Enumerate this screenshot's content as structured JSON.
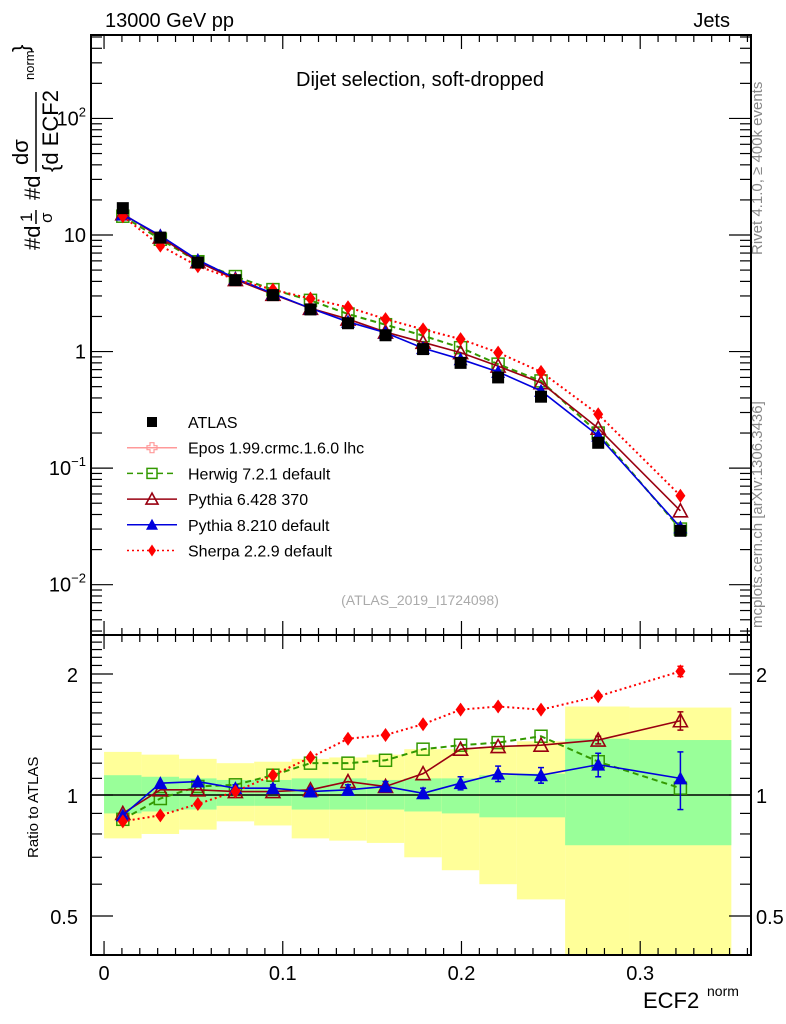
{
  "header": {
    "left": "13000 GeV pp",
    "right": "Jets",
    "side_top": "Rivet 4.1.0, ≥ 400k events",
    "side_bottom": "mcplots.cern.ch [arXiv:1306.3436]"
  },
  "chart_data": [
    {
      "type": "line",
      "title": "Dijet selection, soft-dropped",
      "analysis_label": "(ATLAS_2019_I1724098)",
      "ylabel": "#d¹⁄σ #d dσ/{d ECF2^{norm}}",
      "ylabel_parts": {
        "lhs": "#d",
        "frac1_num": "1",
        "frac1_den": "σ",
        "mid": "#d",
        "frac2_num": "dσ",
        "frac2_den": "{d ECF2",
        "sup": "norm",
        "close": "}"
      },
      "yscale": "log",
      "ylim": [
        0.0037,
        520
      ],
      "xlim": [
        -0.0073,
        0.362
      ],
      "yticks": [
        {
          "v": 100,
          "base": "10",
          "exp": "2"
        },
        {
          "v": 10,
          "base": "10",
          "exp": ""
        },
        {
          "v": 1,
          "base": "1",
          "exp": ""
        },
        {
          "v": 0.1,
          "base": "10",
          "exp": "−1"
        },
        {
          "v": 0.01,
          "base": "10",
          "exp": "−2"
        }
      ],
      "x": [
        0.0105,
        0.0315,
        0.0525,
        0.0735,
        0.0945,
        0.1155,
        0.1365,
        0.1575,
        0.1785,
        0.1995,
        0.2205,
        0.2445,
        0.2765,
        0.3225
      ],
      "series": [
        {
          "name": "ATLAS",
          "color": "#000000",
          "marker": "square-filled",
          "line": "none",
          "values": [
            17.0,
            9.5,
            5.8,
            4.1,
            3.05,
            2.3,
            1.75,
            1.38,
            1.05,
            0.8,
            0.6,
            0.41,
            0.165,
            0.029
          ]
        },
        {
          "name": "Epos 1.99.crmc.1.6.0 lhc",
          "color": "#ff9999",
          "marker": "plus-open",
          "line": "solid",
          "values": []
        },
        {
          "name": "Herwig 7.2.1 default",
          "color": "#339900",
          "marker": "square-open",
          "line": "dashed",
          "values": [
            14.5,
            9.2,
            5.9,
            4.4,
            3.4,
            2.75,
            2.1,
            1.7,
            1.37,
            1.08,
            0.78,
            0.56,
            0.2,
            0.03
          ]
        },
        {
          "name": "Pythia 6.428 370",
          "color": "#990011",
          "marker": "triangle-open",
          "line": "solid",
          "values": [
            15.2,
            9.6,
            5.9,
            4.15,
            3.1,
            2.35,
            1.9,
            1.47,
            1.2,
            0.98,
            0.75,
            0.54,
            0.22,
            0.043
          ]
        },
        {
          "name": "Pythia 8.210 default",
          "color": "#0000dd",
          "marker": "triangle-filled",
          "line": "solid",
          "values": [
            15.0,
            9.9,
            6.1,
            4.25,
            3.15,
            2.35,
            1.8,
            1.45,
            1.07,
            0.86,
            0.67,
            0.46,
            0.19,
            0.031
          ]
        },
        {
          "name": "Sherpa 2.2.9 default",
          "color": "#ff0000",
          "marker": "diamond-filled",
          "line": "dotted",
          "values": [
            14.5,
            8.1,
            5.4,
            4.15,
            3.4,
            2.85,
            2.4,
            1.9,
            1.55,
            1.28,
            0.98,
            0.67,
            0.29,
            0.058
          ]
        }
      ],
      "legend_position": "middle-left"
    },
    {
      "type": "line",
      "ylabel": "Ratio to ATLAS",
      "xlabel": "ECF2",
      "xlabel_sup": "norm",
      "yscale": "log",
      "ylim": [
        0.4,
        2.5
      ],
      "xlim": [
        -0.0073,
        0.362
      ],
      "yticks": [
        {
          "v": 2,
          "label": "2"
        },
        {
          "v": 1,
          "label": "1"
        },
        {
          "v": 0.5,
          "label": "0.5"
        }
      ],
      "xticks": [
        {
          "v": 0,
          "label": "0"
        },
        {
          "v": 0.1,
          "label": "0.1"
        },
        {
          "v": 0.2,
          "label": "0.2"
        },
        {
          "v": 0.3,
          "label": "0.3"
        }
      ],
      "bin_edges": [
        0.0,
        0.021,
        0.042,
        0.063,
        0.084,
        0.105,
        0.126,
        0.147,
        0.168,
        0.189,
        0.21,
        0.231,
        0.258,
        0.294,
        0.351
      ],
      "band_stat": {
        "color": "#99ff99",
        "lo": [
          0.9,
          0.91,
          0.92,
          0.94,
          0.94,
          0.92,
          0.92,
          0.92,
          0.91,
          0.9,
          0.88,
          0.88,
          0.75,
          0.75
        ],
        "hi": [
          1.12,
          1.11,
          1.1,
          1.09,
          1.09,
          1.1,
          1.1,
          1.09,
          1.1,
          1.1,
          1.12,
          1.13,
          1.38,
          1.37
        ]
      },
      "band_total": {
        "color": "#ffff99",
        "lo": [
          0.78,
          0.8,
          0.82,
          0.86,
          0.84,
          0.78,
          0.77,
          0.76,
          0.7,
          0.65,
          0.6,
          0.55,
          0.38,
          0.38
        ],
        "hi": [
          1.28,
          1.26,
          1.23,
          1.2,
          1.21,
          1.23,
          1.24,
          1.26,
          1.3,
          1.3,
          1.32,
          1.36,
          1.66,
          1.65
        ]
      },
      "series": [
        {
          "name": "Herwig 7.2.1 default",
          "color": "#339900",
          "marker": "square-open",
          "line": "dashed",
          "values": [
            0.87,
            0.98,
            1.05,
            1.06,
            1.12,
            1.2,
            1.2,
            1.22,
            1.3,
            1.33,
            1.35,
            1.4,
            1.21,
            1.04
          ]
        },
        {
          "name": "Pythia 6.428 370",
          "color": "#990011",
          "marker": "triangle-open",
          "line": "solid",
          "values": [
            0.9,
            1.03,
            1.03,
            1.02,
            1.02,
            1.03,
            1.08,
            1.05,
            1.13,
            1.3,
            1.32,
            1.33,
            1.37,
            1.53
          ],
          "err": [
            0,
            0,
            0,
            0,
            0,
            0,
            0,
            0,
            0,
            0,
            0,
            0,
            0.03,
            0.08
          ]
        },
        {
          "name": "Pythia 8.210 default",
          "color": "#0000dd",
          "marker": "triangle-filled",
          "line": "solid",
          "values": [
            0.89,
            1.07,
            1.08,
            1.04,
            1.04,
            1.02,
            1.03,
            1.05,
            1.01,
            1.07,
            1.13,
            1.12,
            1.19,
            1.1
          ],
          "err": [
            0,
            0,
            0,
            0.02,
            0.02,
            0.02,
            0.03,
            0.03,
            0.03,
            0.04,
            0.05,
            0.05,
            0.08,
            0.18
          ]
        },
        {
          "name": "Sherpa 2.2.9 default",
          "color": "#ff0000",
          "marker": "diamond-filled",
          "line": "dotted",
          "values": [
            0.86,
            0.89,
            0.95,
            1.02,
            1.12,
            1.24,
            1.38,
            1.41,
            1.5,
            1.63,
            1.66,
            1.63,
            1.76,
            2.03
          ],
          "err": [
            0,
            0,
            0,
            0,
            0,
            0,
            0,
            0,
            0,
            0,
            0,
            0,
            0,
            0.06
          ]
        }
      ]
    }
  ]
}
